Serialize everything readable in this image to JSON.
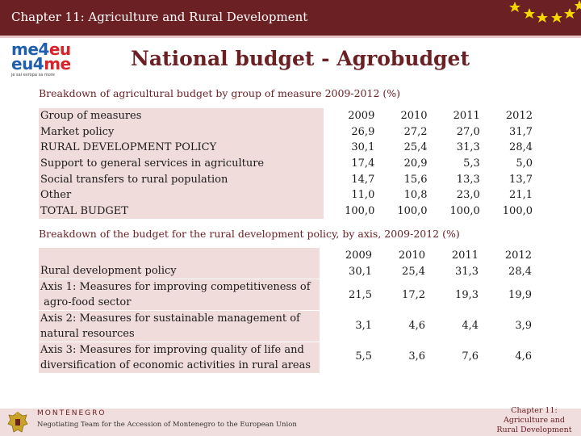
{
  "header": {
    "title": "Chapter 11: Agriculture and Rural Development"
  },
  "logo": {
    "line1_a": "me4",
    "line1_b": "eu",
    "line2_a": "eu4",
    "line2_b": "me",
    "tagline": "je sai evropa sa more"
  },
  "main_title": "National budget - Agrobudget",
  "table1": {
    "title": "Breakdown of agricultural budget by group of measure 2009-2012 (%)",
    "header": [
      "Group of measures",
      "2009",
      "2010",
      "2011",
      "2012"
    ],
    "rows": [
      {
        "label": "Market policy",
        "values": [
          "26,9",
          "27,2",
          "27,0",
          "31,7"
        ]
      },
      {
        "label": "RURAL DEVELOPMENT POLICY",
        "values": [
          "30,1",
          "25,4",
          "31,3",
          "28,4"
        ]
      },
      {
        "label": "Support to general services in agriculture",
        "values": [
          "17,4",
          "20,9",
          "5,3",
          "5,0"
        ]
      },
      {
        "label": "Social transfers to rural population",
        "values": [
          "14,7",
          "15,6",
          "13,3",
          "13,7"
        ]
      },
      {
        "label": "Other",
        "values": [
          "11,0",
          "10,8",
          "23,0",
          "21,1"
        ]
      },
      {
        "label": "TOTAL BUDGET",
        "values": [
          "100,0",
          "100,0",
          "100,0",
          "100,0"
        ]
      }
    ]
  },
  "table2": {
    "title": "Breakdown of the budget for the rural development policy, by axis, 2009-2012 (%)",
    "years": [
      "2009",
      "2010",
      "2011",
      "2012"
    ],
    "head_label": "Rural development policy",
    "head_values": [
      "30,1",
      "25,4",
      "31,3",
      "28,4"
    ],
    "rows": [
      {
        "line1": "Axis 1: Measures for improving competitiveness of",
        "line2": "agro-food sector",
        "values": [
          "21,5",
          "17,2",
          "19,3",
          "19,9"
        ]
      },
      {
        "line1": "Axis 2: Measures for sustainable management of",
        "line2": "natural resources",
        "values": [
          "3,1",
          "4,6",
          "4,4",
          "3,9"
        ]
      },
      {
        "line1": "Axis 3: Measures for improving quality of life and",
        "line2": "diversification of economic activities in rural areas",
        "values": [
          "5,5",
          "3,6",
          "7,6",
          "4,6"
        ]
      }
    ]
  },
  "footer": {
    "country": "MONTENEGRO",
    "team": "Negotiating Team for the Accession of Montenegro to the European Union",
    "right_line1": "Chapter 11:",
    "right_line2": "Agriculture and",
    "right_line3": "Rural Development"
  },
  "colors": {
    "brand": "#6b2024",
    "shade": "#f1dcdc",
    "star": "#f4d600"
  }
}
